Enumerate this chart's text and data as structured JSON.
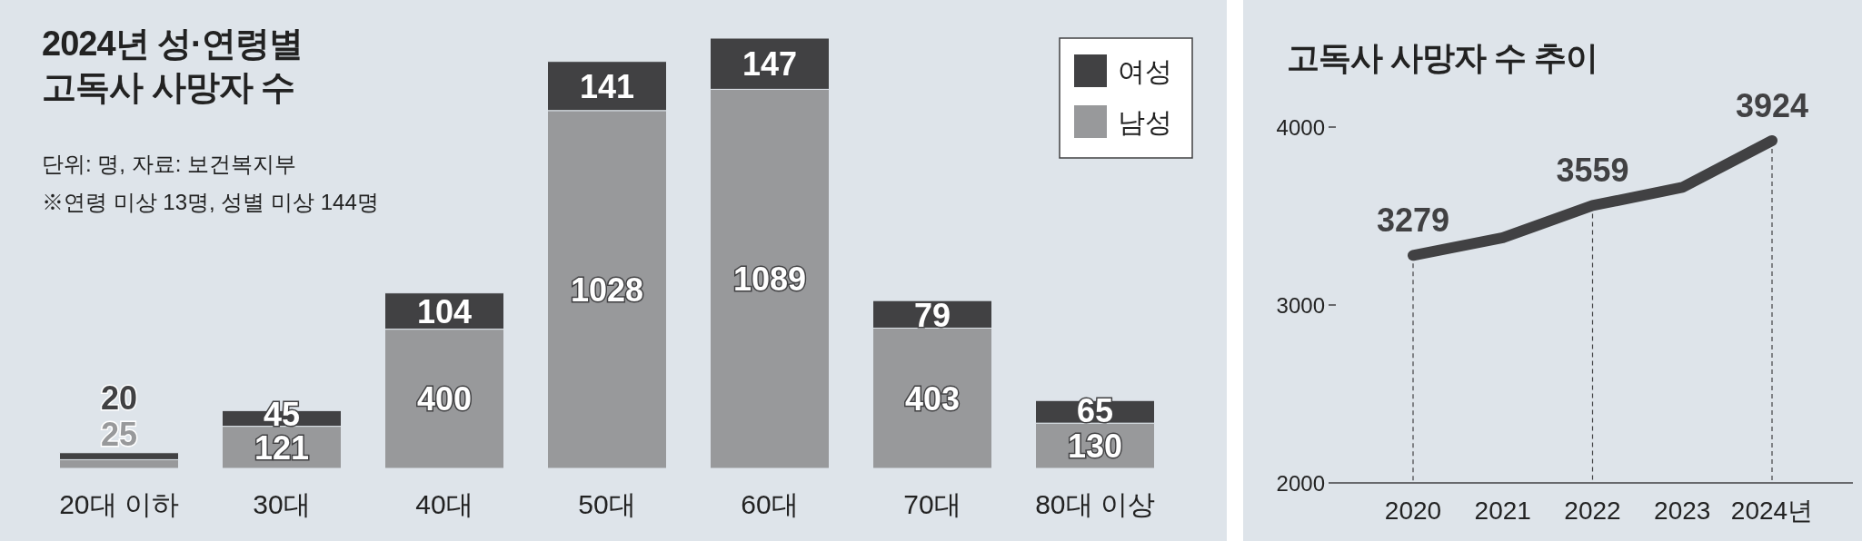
{
  "chart_data": [
    {
      "type": "bar",
      "title": "2024년 성·연령별 고독사 사망자 수",
      "annotations": [
        "단위: 명, 자료: 보건복지부",
        "※연령 미상 13명, 성별 미상 144명"
      ],
      "categories": [
        "20대 이하",
        "30대",
        "40대",
        "50대",
        "60대",
        "70대",
        "80대 이상"
      ],
      "stacked": true,
      "data_labels": true,
      "legend": "top right",
      "series": [
        {
          "name": "남성",
          "color": "#98999b",
          "values": [
            25,
            121,
            400,
            1028,
            1089,
            403,
            130
          ]
        },
        {
          "name": "여성",
          "color": "#414143",
          "values": [
            20,
            45,
            104,
            141,
            147,
            79,
            65
          ]
        }
      ]
    },
    {
      "type": "line",
      "title": "고독사 사망자 수 추이",
      "categories": [
        "2020",
        "2021",
        "2022",
        "2023",
        "2024년"
      ],
      "ylim": [
        2000,
        4000
      ],
      "yticks": [
        2000,
        3000,
        4000
      ],
      "series": [
        {
          "color": "#414143",
          "values": [
            3279,
            3378,
            3559,
            3661,
            3924
          ],
          "value_labels": [
            "3279",
            null,
            "3559",
            null,
            "3924"
          ]
        }
      ],
      "ref_lines": [
        {
          "axis": "x",
          "value": "2020",
          "line_style": "dashed"
        },
        {
          "axis": "x",
          "value": "2022",
          "line_style": "dashed"
        },
        {
          "axis": "x",
          "value": "2024년",
          "line_style": "dashed"
        }
      ]
    }
  ]
}
